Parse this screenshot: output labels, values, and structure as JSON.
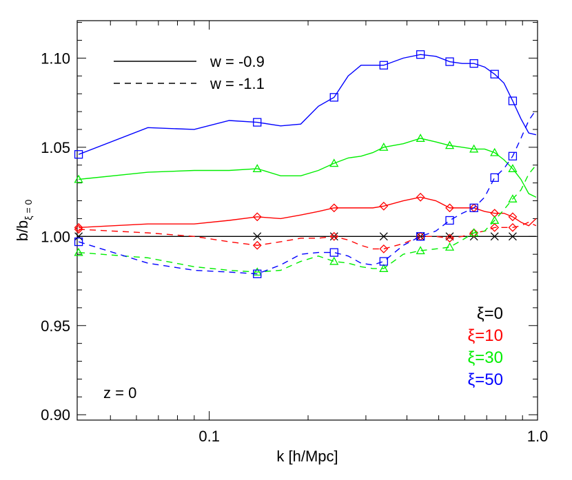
{
  "chart_data": {
    "type": "line",
    "xlabel": "k [h/Mpc]",
    "ylabel": "b/b",
    "ylabel_sub": "ξ = 0",
    "xlog": true,
    "xlim": [
      0.0396,
      1.0
    ],
    "ylim": [
      0.897,
      1.121
    ],
    "xticks": [
      0.1,
      {
        "value": 1,
        "label": "1.0"
      }
    ],
    "xminorticks": [
      0.05,
      0.06,
      0.07,
      0.08,
      0.09,
      0.2,
      0.3,
      0.4,
      0.5,
      0.6,
      0.7,
      0.8,
      0.9
    ],
    "yticks": [
      {
        "value": 0.9,
        "label": "0.90"
      },
      0.95,
      {
        "value": 1,
        "label": "1.00"
      },
      1.05,
      {
        "value": 1.1,
        "label": "1.10"
      }
    ],
    "yminorticks": [
      0.91,
      0.92,
      0.93,
      0.94,
      0.96,
      0.97,
      0.98,
      0.99,
      1.01,
      1.02,
      1.03,
      1.04,
      1.06,
      1.07,
      1.08,
      1.09,
      1.11,
      1.12
    ],
    "annotation": "z = 0",
    "line_styles": [
      {
        "label": "w = -0.9",
        "dash": "none"
      },
      {
        "label": "w = -1.1",
        "dash": "9 7"
      }
    ],
    "marker_x": [
      0.04,
      0.14,
      0.24,
      0.34,
      0.44,
      0.54,
      0.64,
      0.74,
      0.84
    ],
    "x": [
      0.04,
      0.065,
      0.09,
      0.115,
      0.14,
      0.165,
      0.19,
      0.215,
      0.24,
      0.265,
      0.29,
      0.315,
      0.34,
      0.39,
      0.44,
      0.49,
      0.54,
      0.59,
      0.64,
      0.69,
      0.74,
      0.79,
      0.84,
      0.89,
      0.94,
      0.99
    ],
    "series": [
      {
        "name": "ξ=0",
        "color": "#000000",
        "marker": "cross",
        "lines": [
          {
            "values": [
              1,
              1,
              1,
              1,
              1,
              1,
              1,
              1,
              1,
              1,
              1,
              1,
              1,
              1,
              1,
              1,
              1,
              1,
              1,
              1,
              1,
              1,
              1,
              1,
              1,
              1
            ]
          }
        ]
      },
      {
        "name": "ξ=10",
        "color": "#ff0000",
        "marker": "diamond",
        "lines": [
          {
            "values": [
              1.005,
              1.007,
              1.007,
              1.009,
              1.011,
              1.01,
              1.012,
              1.014,
              1.016,
              1.016,
              1.016,
              1.016,
              1.017,
              1.02,
              1.022,
              1.02,
              1.016,
              1.016,
              1.016,
              1.014,
              1.013,
              1.013,
              1.011,
              1.008,
              1.006,
              1.01
            ]
          },
          {
            "values": [
              1.004,
              1.002,
              1.0,
              0.997,
              0.995,
              0.997,
              0.999,
              0.999,
              1.0,
              0.998,
              0.995,
              0.993,
              0.993,
              0.996,
              1.0,
              1.0,
              0.999,
              1.0,
              1.002,
              1.003,
              1.005,
              1.005,
              1.005,
              1.006,
              1.008,
              1.006
            ]
          }
        ]
      },
      {
        "name": "ξ=30",
        "color": "#00ee00",
        "marker": "triangle",
        "lines": [
          {
            "values": [
              1.032,
              1.036,
              1.037,
              1.037,
              1.038,
              1.034,
              1.034,
              1.037,
              1.041,
              1.044,
              1.045,
              1.047,
              1.05,
              1.052,
              1.055,
              1.053,
              1.051,
              1.05,
              1.049,
              1.049,
              1.047,
              1.043,
              1.038,
              1.032,
              1.024,
              1.022
            ]
          },
          {
            "values": [
              0.991,
              0.988,
              0.983,
              0.981,
              0.98,
              0.981,
              0.986,
              0.989,
              0.986,
              0.985,
              0.983,
              0.982,
              0.982,
              0.99,
              0.992,
              0.993,
              0.994,
              0.998,
              1.002,
              1.003,
              1.009,
              1.015,
              1.021,
              1.026,
              1.035,
              1.04
            ]
          }
        ]
      },
      {
        "name": "ξ=50",
        "color": "#0000ff",
        "marker": "square",
        "lines": [
          {
            "values": [
              1.046,
              1.061,
              1.06,
              1.065,
              1.064,
              1.062,
              1.063,
              1.073,
              1.078,
              1.09,
              1.096,
              1.096,
              1.096,
              1.1,
              1.102,
              1.101,
              1.098,
              1.097,
              1.097,
              1.095,
              1.091,
              1.086,
              1.076,
              1.066,
              1.058,
              1.057
            ]
          },
          {
            "values": [
              0.997,
              0.985,
              0.981,
              0.98,
              0.979,
              0.984,
              0.99,
              0.991,
              0.991,
              0.989,
              0.985,
              0.984,
              0.986,
              0.995,
              1.0,
              1.003,
              1.009,
              1.013,
              1.016,
              1.022,
              1.033,
              1.038,
              1.045,
              1.055,
              1.065,
              1.071
            ]
          }
        ]
      }
    ]
  }
}
